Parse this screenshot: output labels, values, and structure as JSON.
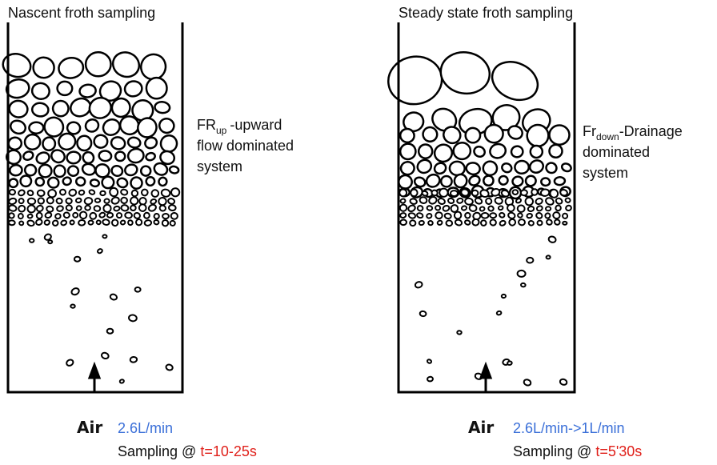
{
  "panels": [
    {
      "title": "Nascent froth sampling",
      "label": {
        "main": "FR",
        "sub": "up",
        "lines": [
          "-upward",
          "flow dominated",
          "system"
        ]
      },
      "air": "Air",
      "flow": "2.6L/min",
      "sampling": "Sampling @ ",
      "time": "t=10-25s"
    },
    {
      "title": "Steady state froth sampling",
      "label": {
        "main": "Fr",
        "sub": "down",
        "lines": [
          "-Drainage",
          "dominated",
          "system"
        ]
      },
      "air": "Air",
      "flow": "2.6L/min->1L/min",
      "sampling": "Sampling @ ",
      "time": "t=5'30s"
    }
  ]
}
